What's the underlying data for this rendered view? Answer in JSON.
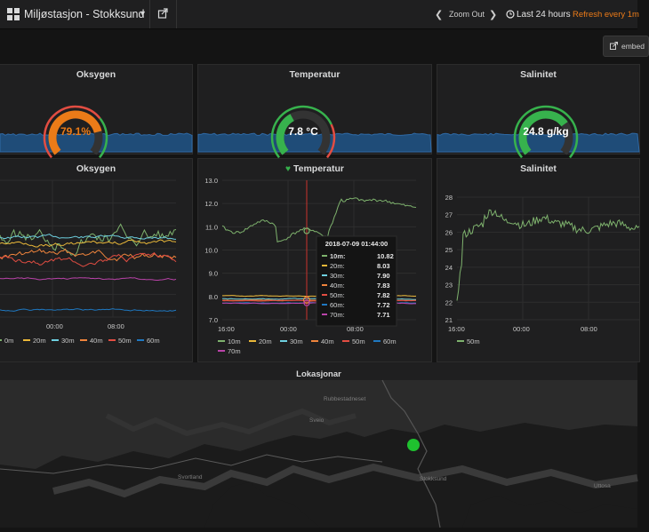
{
  "topbar": {
    "title": "Miljøstasjon - Stokksund",
    "zoom_out": "Zoom Out",
    "time_range": "Last 24 hours",
    "refresh": "Refresh every 1m"
  },
  "embed_label": "embed",
  "icons": [
    "dashboard-grid-icon",
    "caret-down-icon",
    "share-icon",
    "chevron-left-icon",
    "chevron-right-icon",
    "clock-icon",
    "external-link-icon",
    "heart-icon"
  ],
  "colors": {
    "orange": "#eb7b18",
    "green": "#37b24d",
    "red": "#e24d42",
    "sparkline": "#1f5285"
  },
  "gauges": [
    {
      "title": "Oksygen",
      "value": 79.1,
      "unit": "%",
      "display": "79.1%",
      "color": "#eb7b18"
    },
    {
      "title": "Temperatur",
      "value": 7.8,
      "unit": "°C",
      "display": "7.8 °C",
      "color": "#ffffff"
    },
    {
      "title": "Salinitet",
      "value": 24.8,
      "unit": "g/kg",
      "display": "24.8 g/kg",
      "color": "#ffffff"
    }
  ],
  "graphs": {
    "oksygen": {
      "title": "Oksygen",
      "x_ticks": [
        "00:00",
        "08:00"
      ],
      "legend": [
        "0m",
        "20m",
        "30m",
        "40m",
        "50m",
        "60m"
      ]
    },
    "temperatur": {
      "title": "Temperatur",
      "y_ticks": [
        "13.0",
        "12.0",
        "11.0",
        "10.0",
        "9.0",
        "8.0",
        "7.0"
      ],
      "x_ticks": [
        "16:00",
        "00:00",
        "08:00"
      ],
      "legend": [
        "10m",
        "20m",
        "30m",
        "40m",
        "50m",
        "60m",
        "70m"
      ],
      "tooltip": {
        "time": "2018-07-09 01:44:00",
        "rows": [
          {
            "label": "10m:",
            "value": "10.82"
          },
          {
            "label": "20m:",
            "value": "8.03"
          },
          {
            "label": "30m:",
            "value": "7.90"
          },
          {
            "label": "40m:",
            "value": "7.83"
          },
          {
            "label": "50m:",
            "value": "7.82"
          },
          {
            "label": "60m:",
            "value": "7.72"
          },
          {
            "label": "70m:",
            "value": "7.71"
          }
        ]
      }
    },
    "salinitet": {
      "title": "Salinitet",
      "y_ticks": [
        "28",
        "27",
        "26",
        "25",
        "24",
        "23",
        "22",
        "21"
      ],
      "x_ticks": [
        "16:00",
        "00:00",
        "08:00"
      ],
      "legend": [
        "50m"
      ]
    }
  },
  "map": {
    "title": "Lokasjonar",
    "labels": [
      "Rubbestadneset",
      "Sveio",
      "Svortland",
      "Stokksund",
      "Uttosa"
    ]
  }
}
